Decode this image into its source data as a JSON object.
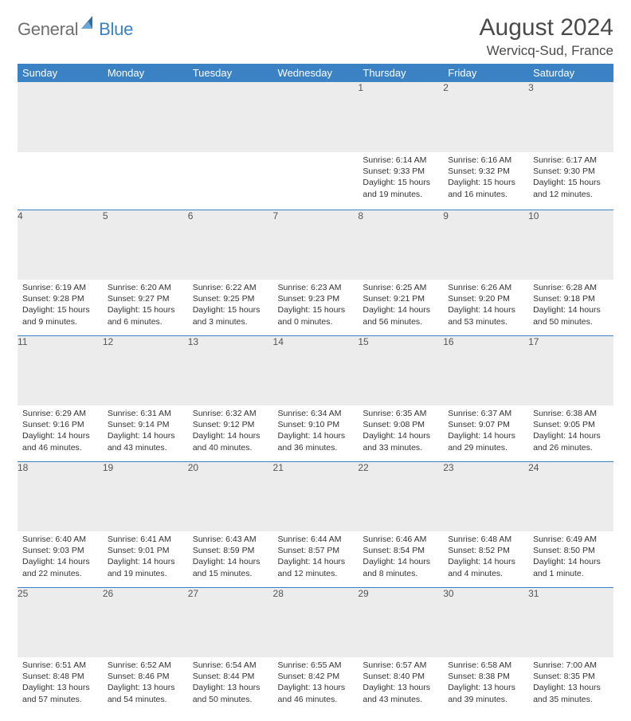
{
  "logo": {
    "general": "General",
    "blue": "Blue"
  },
  "header": {
    "month_year": "August 2024",
    "location": "Wervicq-Sud, France"
  },
  "style": {
    "header_bg": "#3b82c4",
    "header_text": "#ffffff",
    "daynum_bg": "#ececec",
    "border_color": "#3b82c4",
    "text_color": "#333333",
    "logo_gray": "#6f6f6f",
    "logo_blue": "#3b82c4"
  },
  "weekdays": [
    "Sunday",
    "Monday",
    "Tuesday",
    "Wednesday",
    "Thursday",
    "Friday",
    "Saturday"
  ],
  "weeks": [
    [
      null,
      null,
      null,
      null,
      {
        "d": "1",
        "sr": "Sunrise: 6:14 AM",
        "ss": "Sunset: 9:33 PM",
        "dl": "Daylight: 15 hours and 19 minutes."
      },
      {
        "d": "2",
        "sr": "Sunrise: 6:16 AM",
        "ss": "Sunset: 9:32 PM",
        "dl": "Daylight: 15 hours and 16 minutes."
      },
      {
        "d": "3",
        "sr": "Sunrise: 6:17 AM",
        "ss": "Sunset: 9:30 PM",
        "dl": "Daylight: 15 hours and 12 minutes."
      }
    ],
    [
      {
        "d": "4",
        "sr": "Sunrise: 6:19 AM",
        "ss": "Sunset: 9:28 PM",
        "dl": "Daylight: 15 hours and 9 minutes."
      },
      {
        "d": "5",
        "sr": "Sunrise: 6:20 AM",
        "ss": "Sunset: 9:27 PM",
        "dl": "Daylight: 15 hours and 6 minutes."
      },
      {
        "d": "6",
        "sr": "Sunrise: 6:22 AM",
        "ss": "Sunset: 9:25 PM",
        "dl": "Daylight: 15 hours and 3 minutes."
      },
      {
        "d": "7",
        "sr": "Sunrise: 6:23 AM",
        "ss": "Sunset: 9:23 PM",
        "dl": "Daylight: 15 hours and 0 minutes."
      },
      {
        "d": "8",
        "sr": "Sunrise: 6:25 AM",
        "ss": "Sunset: 9:21 PM",
        "dl": "Daylight: 14 hours and 56 minutes."
      },
      {
        "d": "9",
        "sr": "Sunrise: 6:26 AM",
        "ss": "Sunset: 9:20 PM",
        "dl": "Daylight: 14 hours and 53 minutes."
      },
      {
        "d": "10",
        "sr": "Sunrise: 6:28 AM",
        "ss": "Sunset: 9:18 PM",
        "dl": "Daylight: 14 hours and 50 minutes."
      }
    ],
    [
      {
        "d": "11",
        "sr": "Sunrise: 6:29 AM",
        "ss": "Sunset: 9:16 PM",
        "dl": "Daylight: 14 hours and 46 minutes."
      },
      {
        "d": "12",
        "sr": "Sunrise: 6:31 AM",
        "ss": "Sunset: 9:14 PM",
        "dl": "Daylight: 14 hours and 43 minutes."
      },
      {
        "d": "13",
        "sr": "Sunrise: 6:32 AM",
        "ss": "Sunset: 9:12 PM",
        "dl": "Daylight: 14 hours and 40 minutes."
      },
      {
        "d": "14",
        "sr": "Sunrise: 6:34 AM",
        "ss": "Sunset: 9:10 PM",
        "dl": "Daylight: 14 hours and 36 minutes."
      },
      {
        "d": "15",
        "sr": "Sunrise: 6:35 AM",
        "ss": "Sunset: 9:08 PM",
        "dl": "Daylight: 14 hours and 33 minutes."
      },
      {
        "d": "16",
        "sr": "Sunrise: 6:37 AM",
        "ss": "Sunset: 9:07 PM",
        "dl": "Daylight: 14 hours and 29 minutes."
      },
      {
        "d": "17",
        "sr": "Sunrise: 6:38 AM",
        "ss": "Sunset: 9:05 PM",
        "dl": "Daylight: 14 hours and 26 minutes."
      }
    ],
    [
      {
        "d": "18",
        "sr": "Sunrise: 6:40 AM",
        "ss": "Sunset: 9:03 PM",
        "dl": "Daylight: 14 hours and 22 minutes."
      },
      {
        "d": "19",
        "sr": "Sunrise: 6:41 AM",
        "ss": "Sunset: 9:01 PM",
        "dl": "Daylight: 14 hours and 19 minutes."
      },
      {
        "d": "20",
        "sr": "Sunrise: 6:43 AM",
        "ss": "Sunset: 8:59 PM",
        "dl": "Daylight: 14 hours and 15 minutes."
      },
      {
        "d": "21",
        "sr": "Sunrise: 6:44 AM",
        "ss": "Sunset: 8:57 PM",
        "dl": "Daylight: 14 hours and 12 minutes."
      },
      {
        "d": "22",
        "sr": "Sunrise: 6:46 AM",
        "ss": "Sunset: 8:54 PM",
        "dl": "Daylight: 14 hours and 8 minutes."
      },
      {
        "d": "23",
        "sr": "Sunrise: 6:48 AM",
        "ss": "Sunset: 8:52 PM",
        "dl": "Daylight: 14 hours and 4 minutes."
      },
      {
        "d": "24",
        "sr": "Sunrise: 6:49 AM",
        "ss": "Sunset: 8:50 PM",
        "dl": "Daylight: 14 hours and 1 minute."
      }
    ],
    [
      {
        "d": "25",
        "sr": "Sunrise: 6:51 AM",
        "ss": "Sunset: 8:48 PM",
        "dl": "Daylight: 13 hours and 57 minutes."
      },
      {
        "d": "26",
        "sr": "Sunrise: 6:52 AM",
        "ss": "Sunset: 8:46 PM",
        "dl": "Daylight: 13 hours and 54 minutes."
      },
      {
        "d": "27",
        "sr": "Sunrise: 6:54 AM",
        "ss": "Sunset: 8:44 PM",
        "dl": "Daylight: 13 hours and 50 minutes."
      },
      {
        "d": "28",
        "sr": "Sunrise: 6:55 AM",
        "ss": "Sunset: 8:42 PM",
        "dl": "Daylight: 13 hours and 46 minutes."
      },
      {
        "d": "29",
        "sr": "Sunrise: 6:57 AM",
        "ss": "Sunset: 8:40 PM",
        "dl": "Daylight: 13 hours and 43 minutes."
      },
      {
        "d": "30",
        "sr": "Sunrise: 6:58 AM",
        "ss": "Sunset: 8:38 PM",
        "dl": "Daylight: 13 hours and 39 minutes."
      },
      {
        "d": "31",
        "sr": "Sunrise: 7:00 AM",
        "ss": "Sunset: 8:35 PM",
        "dl": "Daylight: 13 hours and 35 minutes."
      }
    ]
  ]
}
